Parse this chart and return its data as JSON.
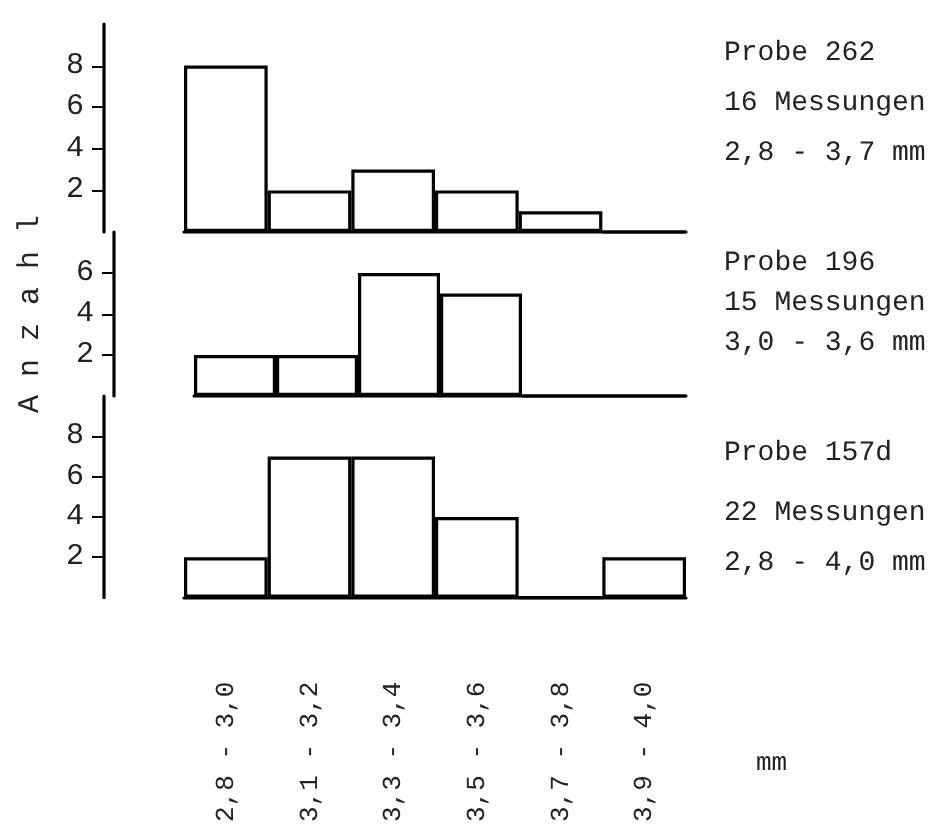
{
  "chart_data": [
    {
      "type": "bar",
      "categories": [
        null,
        null,
        null,
        null,
        null,
        null
      ],
      "values": [
        8,
        2,
        3,
        2,
        1,
        0
      ],
      "color": "#000000",
      "ylim": [
        0,
        10
      ],
      "yticks": [
        2,
        4,
        6,
        8
      ],
      "grid": false,
      "annotations": [
        "Probe 262",
        "16 Messungen",
        "2,8 - 3,7 mm"
      ]
    },
    {
      "type": "bar",
      "categories": [
        null,
        null,
        null,
        null,
        null,
        null
      ],
      "values": [
        2,
        2,
        6,
        5,
        0,
        0
      ],
      "color": "#000000",
      "ylim": [
        0,
        8
      ],
      "yticks": [
        2,
        4,
        6
      ],
      "grid": false,
      "ylabel": "A n z a h l",
      "annotations": [
        "Probe 196",
        "15 Messungen",
        "3,0 - 3,6 mm"
      ]
    },
    {
      "type": "bar",
      "categories": [
        "2,8 - 3,0",
        "3,1 - 3,2",
        "3,3 - 3,4",
        "3,5 - 3,6",
        "3,7 - 3,8",
        "3,9 - 4,0"
      ],
      "values": [
        2,
        7,
        7,
        4,
        0,
        2
      ],
      "color": "#000000",
      "ylim": [
        0,
        10
      ],
      "yticks": [
        2,
        4,
        6,
        8
      ],
      "grid": false,
      "xlabel": "mm",
      "annotations": [
        "Probe 157d",
        "22 Messungen",
        "2,8 - 4,0 mm"
      ]
    }
  ]
}
